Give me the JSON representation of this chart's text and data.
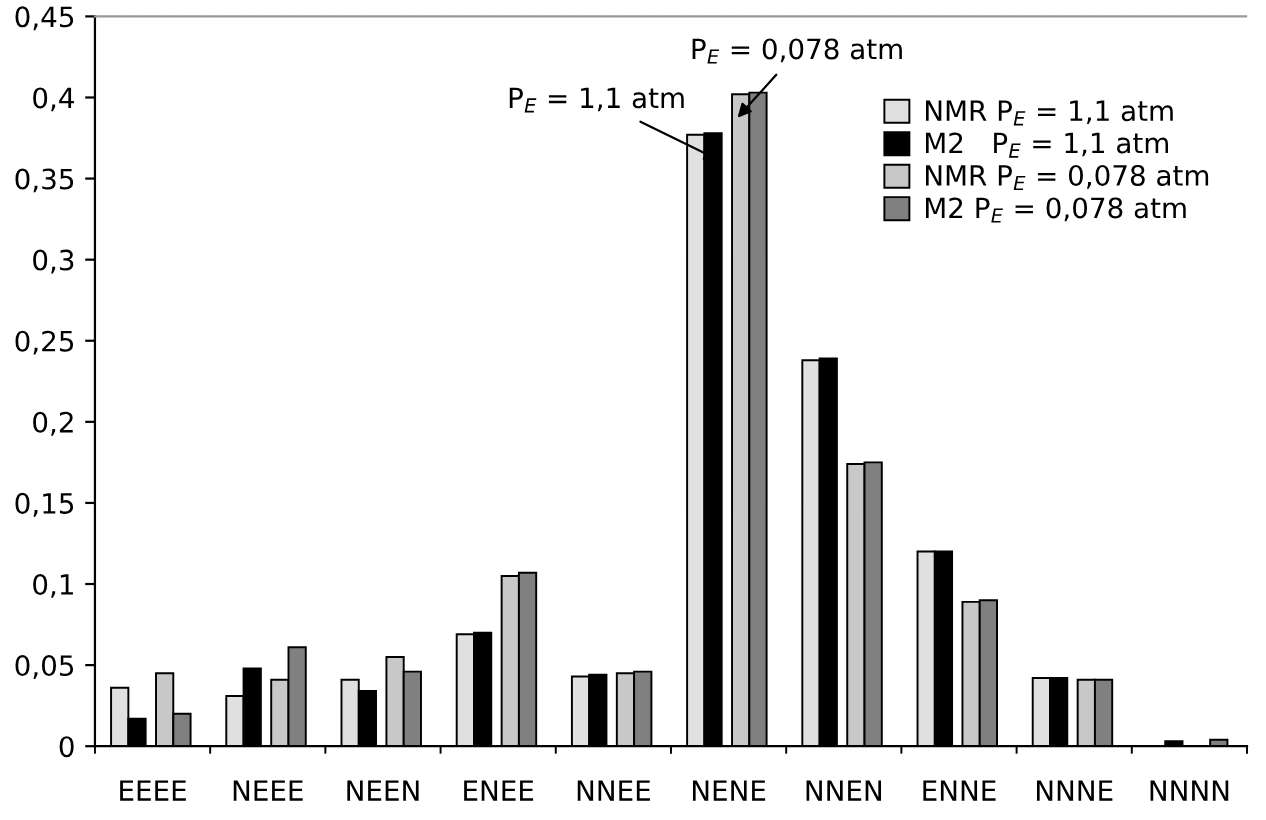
{
  "chart_data": {
    "type": "bar",
    "categories": [
      "EEEE",
      "NEEE",
      "NEEN",
      "ENEE",
      "NNEE",
      "NENE",
      "NNEN",
      "ENNE",
      "NNNE",
      "NNNN"
    ],
    "series": [
      {
        "name": "NMR P$_{E}$ = 1,1 atm",
        "color": "#e0e0e0",
        "values": [
          0.036,
          0.031,
          0.041,
          0.069,
          0.043,
          0.377,
          0.238,
          0.12,
          0.042,
          null
        ]
      },
      {
        "name": "M2   P$_{E}$ = 1,1 atm",
        "color": "#000000",
        "values": [
          0.017,
          0.048,
          0.034,
          0.07,
          0.044,
          0.378,
          0.239,
          0.12,
          0.042,
          0.003
        ]
      },
      {
        "name": "NMR P$_{E}$ = 0,078 atm",
        "color": "#c8c8c8",
        "values": [
          0.045,
          0.041,
          0.055,
          0.105,
          0.045,
          0.402,
          0.174,
          0.089,
          0.041,
          null
        ]
      },
      {
        "name": "M2 P$_{E}$ = 0,078 atm",
        "color": "#808080",
        "values": [
          0.02,
          0.061,
          0.046,
          0.107,
          0.046,
          0.403,
          0.175,
          0.09,
          0.041,
          0.004
        ]
      }
    ],
    "ylim": [
      0,
      0.45
    ],
    "yticks": [
      {
        "value": 0,
        "label": "0"
      },
      {
        "value": 0.05,
        "label": "0,05"
      },
      {
        "value": 0.1,
        "label": "0,1"
      },
      {
        "value": 0.15,
        "label": "0,15"
      },
      {
        "value": 0.2,
        "label": "0,2"
      },
      {
        "value": 0.25,
        "label": "0,25"
      },
      {
        "value": 0.3,
        "label": "0,3"
      },
      {
        "value": 0.35,
        "label": "0,35"
      },
      {
        "value": 0.4,
        "label": "0,4"
      },
      {
        "value": 0.45,
        "label": "0,45"
      }
    ],
    "annotations": [
      {
        "text": "P$_{E}$ = 1,1 atm",
        "x": "NENE",
        "y": 0.36
      },
      {
        "text": "P$_{E}$ = 0,078 atm",
        "x": "NENE",
        "y": 0.385
      }
    ],
    "legend": "top right",
    "grid": false
  }
}
